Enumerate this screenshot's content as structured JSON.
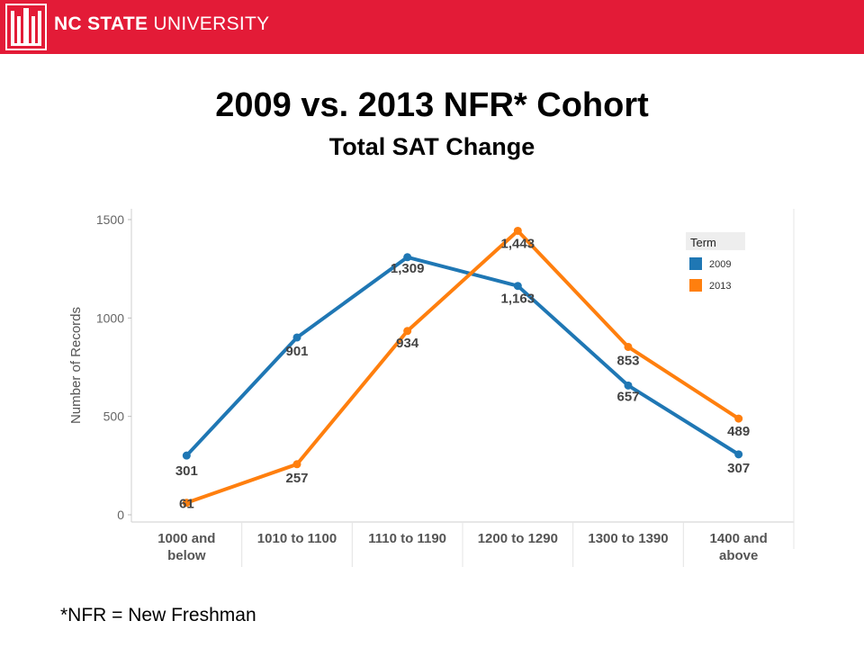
{
  "header": {
    "brand_bold": "NC STATE",
    "brand_rest": " UNIVERSITY",
    "accent_color": "#E31B37"
  },
  "title": "2009 vs. 2013 NFR* Cohort",
  "subtitle": "Total SAT Change",
  "footnote": "*NFR = New Freshman",
  "chart_data": {
    "type": "line",
    "title": "2009 vs. 2013 NFR* Cohort",
    "subtitle": "Total SAT Change",
    "xlabel": "",
    "ylabel": "Number of Records",
    "categories": [
      [
        "1000 and",
        "below"
      ],
      [
        "1010 to 1100"
      ],
      [
        "1110 to 1190"
      ],
      [
        "1200 to 1290"
      ],
      [
        "1300 to 1390"
      ],
      [
        "1400 and",
        "above"
      ]
    ],
    "yticks": [
      0,
      500,
      1000,
      1500
    ],
    "ylim": [
      0,
      1500
    ],
    "grid": false,
    "legend": {
      "title": "Term",
      "position": "top-right"
    },
    "series": [
      {
        "name": "2009",
        "color": "#1F77B4",
        "values": [
          301,
          901,
          1309,
          1163,
          657,
          307
        ],
        "labels": [
          "301",
          "901",
          "1,309",
          "1,163",
          "657",
          "307"
        ]
      },
      {
        "name": "2013",
        "color": "#FF7F0E",
        "values": [
          61,
          257,
          934,
          1443,
          853,
          489
        ],
        "labels": [
          "61",
          "257",
          "934",
          "1,443",
          "853",
          "489"
        ]
      }
    ]
  }
}
